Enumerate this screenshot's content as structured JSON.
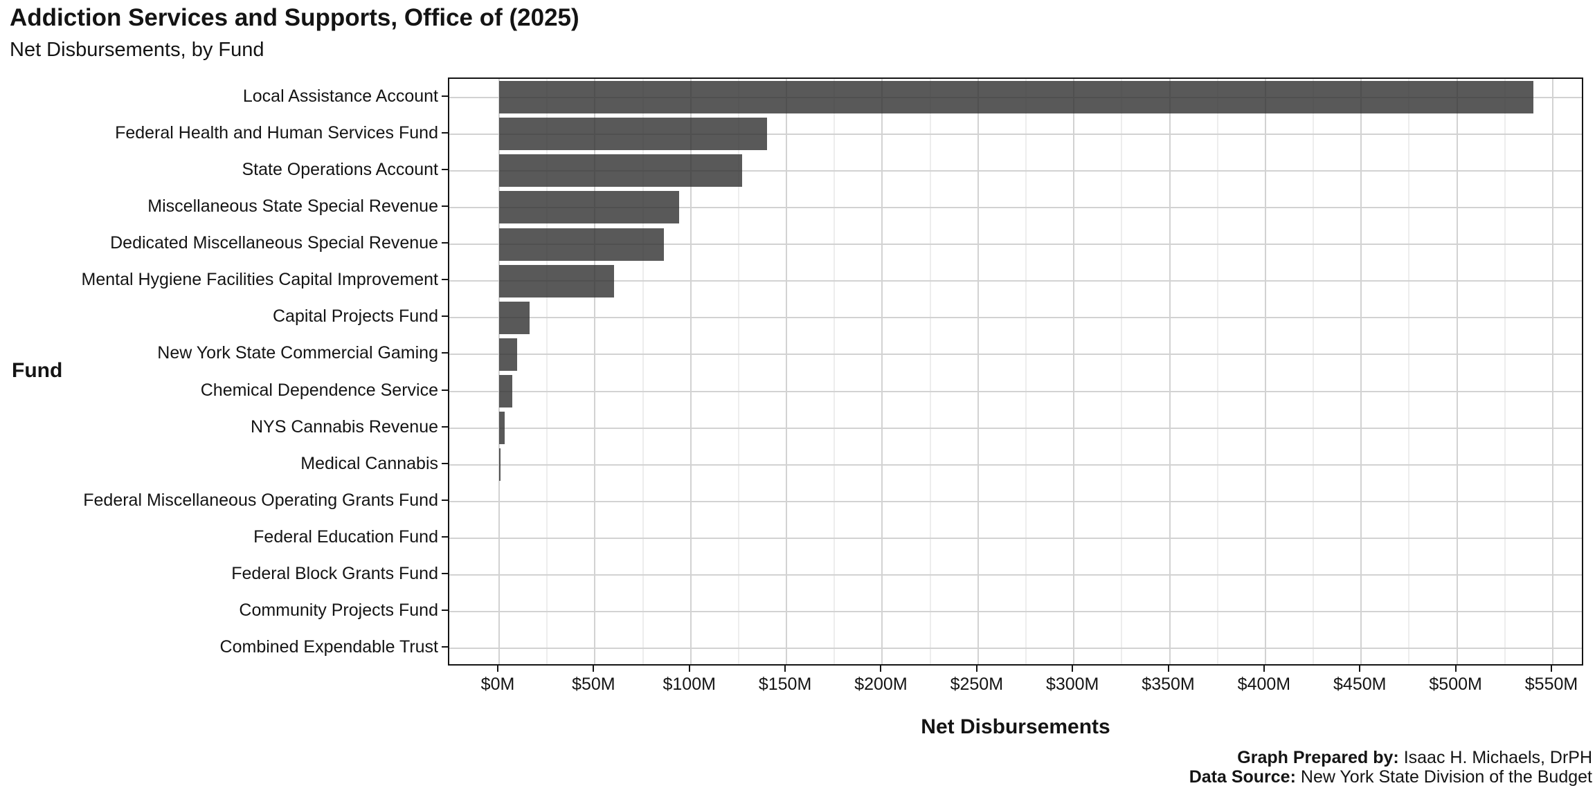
{
  "chart_data": {
    "type": "bar",
    "orientation": "horizontal",
    "title": "Addiction Services and Supports, Office of (2025)",
    "subtitle": "Net Disbursements, by Fund",
    "xlabel": "Net Disbursements",
    "ylabel": "Fund",
    "unit": "millions of dollars",
    "categories": [
      "Local Assistance Account",
      "Federal Health and Human Services Fund",
      "State Operations Account",
      "Miscellaneous State Special Revenue",
      "Dedicated Miscellaneous Special Revenue",
      "Mental Hygiene Facilities Capital Improvement",
      "Capital Projects Fund",
      "New York State Commercial Gaming",
      "Chemical Dependence Service",
      "NYS Cannabis Revenue",
      "Medical Cannabis",
      "Federal Miscellaneous Operating Grants Fund",
      "Federal Education Fund",
      "Federal Block Grants Fund",
      "Community Projects Fund",
      "Combined Expendable Trust"
    ],
    "values": [
      540,
      140,
      127,
      94,
      86,
      60,
      16,
      9.5,
      7,
      3,
      0.5,
      0,
      0,
      0,
      0,
      0
    ],
    "xlim": [
      0,
      550
    ],
    "x_tick_values": [
      0,
      50,
      100,
      150,
      200,
      250,
      300,
      350,
      400,
      450,
      500,
      550
    ],
    "x_tick_labels": [
      "$0M",
      "$50M",
      "$100M",
      "$150M",
      "$200M",
      "$250M",
      "$300M",
      "$350M",
      "$400M",
      "$450M",
      "$500M",
      "$550M"
    ],
    "minor_tick_step": 25,
    "grid": "vertical major+minor, horizontal major at each category",
    "legend": "none",
    "bar_color": "#4d4d4d",
    "major_grid_color": "#d2d2d2",
    "minor_grid_color": "#ededed"
  },
  "caption": {
    "prepared_by_label": "Graph Prepared by:",
    "prepared_by_value": "Isaac H. Michaels, DrPH",
    "source_label": "Data Source:",
    "source_value": "New York State Division of the Budget"
  }
}
